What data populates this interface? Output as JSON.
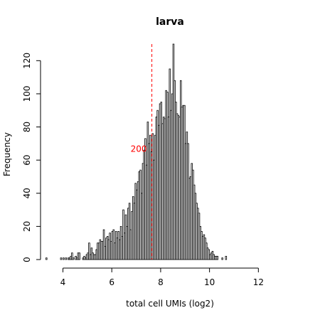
{
  "chart_data": {
    "type": "bar",
    "title": "larva",
    "xlabel": "total cell UMIs (log2)",
    "ylabel": "Frequency",
    "xlim": [
      3.2,
      13.3
    ],
    "ylim": [
      0,
      130
    ],
    "x_ticks": [
      4,
      6,
      8,
      10,
      12
    ],
    "y_ticks": [
      0,
      20,
      40,
      60,
      80,
      100,
      120
    ],
    "bin_width": 0.05,
    "bin_start": 3.3,
    "values": [
      1,
      0,
      0,
      0,
      0,
      0,
      0,
      0,
      0,
      0,
      0,
      0,
      1,
      0,
      1,
      0,
      1,
      0,
      1,
      1,
      2,
      4,
      1,
      0,
      2,
      1,
      4,
      4,
      0,
      0,
      1,
      2,
      1,
      3,
      4,
      10,
      3,
      7,
      4,
      3,
      3,
      6,
      10,
      10,
      12,
      11,
      11,
      18,
      8,
      13,
      14,
      12,
      16,
      11,
      17,
      18,
      10,
      17,
      13,
      17,
      12,
      20,
      14,
      30,
      16,
      27,
      20,
      31,
      34,
      18,
      29,
      38,
      34,
      46,
      42,
      47,
      53,
      54,
      40,
      58,
      66,
      73,
      57,
      83,
      70,
      75,
      65,
      76,
      60,
      75,
      86,
      90,
      81,
      94,
      95,
      82,
      86,
      85,
      102,
      101,
      86,
      115,
      90,
      100,
      130,
      108,
      95,
      88,
      87,
      86,
      108,
      92,
      93,
      93,
      70,
      77,
      70,
      49,
      50,
      58,
      54,
      45,
      40,
      34,
      31,
      28,
      20,
      17,
      14,
      15,
      13,
      10,
      7,
      6,
      3,
      4,
      5,
      3,
      2,
      2,
      2,
      0,
      0,
      0,
      1,
      0,
      0,
      2
    ],
    "annotations": [
      {
        "text": "200",
        "x": 7.64,
        "color": "#ff0000"
      }
    ],
    "colors": {
      "bar_fill": "#ffffff",
      "bar_stroke": "#000000",
      "vline": "#ff0000"
    }
  }
}
